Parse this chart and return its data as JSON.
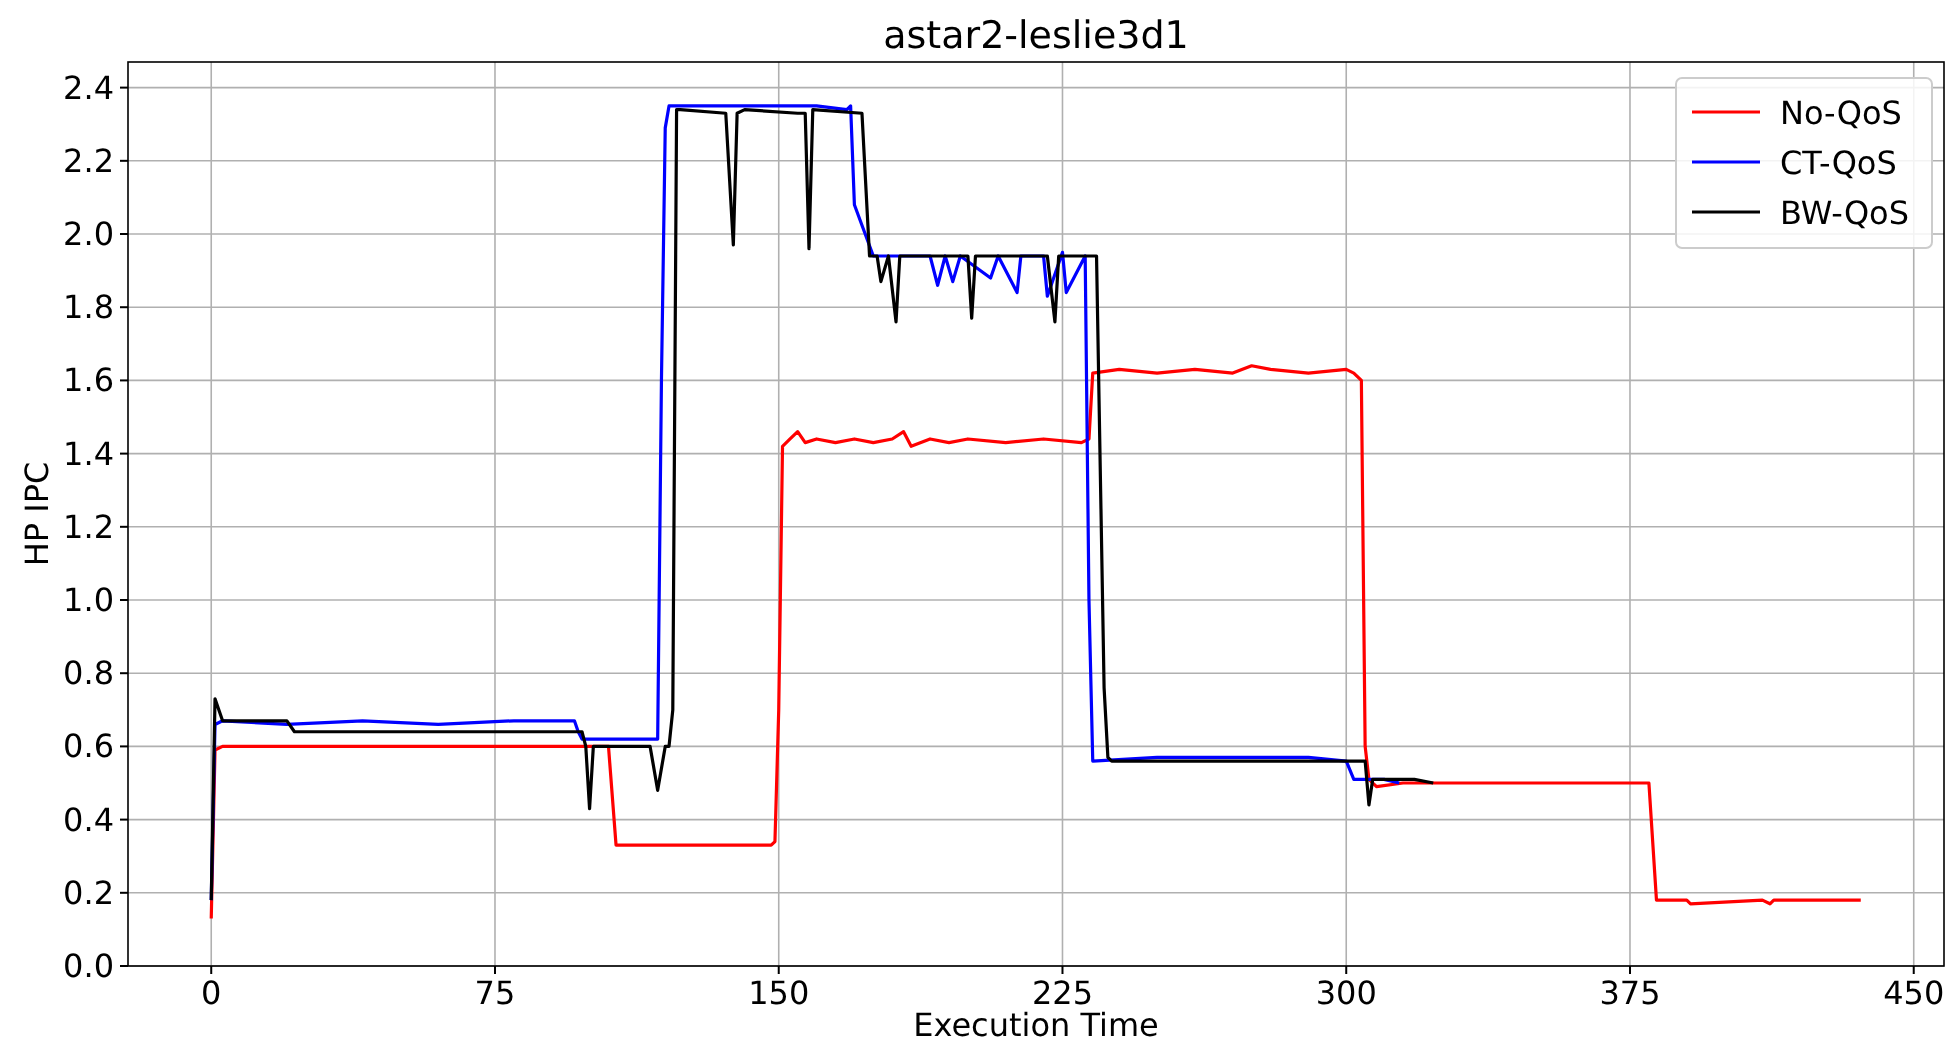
{
  "chart_data": {
    "type": "line",
    "title": "astar2-leslie3d1",
    "xlabel": "Execution Time",
    "ylabel": "HP IPC",
    "xlim": [
      -22,
      458
    ],
    "ylim": [
      0,
      2.47
    ],
    "xticks": [
      0,
      75,
      150,
      225,
      300,
      375,
      450
    ],
    "yticks": [
      {
        "value": 0,
        "label": "0.0"
      },
      0.2,
      0.4,
      0.6,
      0.8,
      {
        "value": 1,
        "label": "1.0"
      },
      1.2,
      1.4,
      1.6,
      1.8,
      {
        "value": 2,
        "label": "2.0"
      },
      2.2,
      2.4
    ],
    "grid": true,
    "legend": "top right",
    "marker": "none",
    "line_style": "solid",
    "series": [
      {
        "name": "No-QoS",
        "color": "#ff0000",
        "x": [
          0,
          1,
          3,
          50,
          104,
          105,
          107,
          148,
          149,
          150,
          151,
          153,
          155,
          157,
          160,
          165,
          170,
          175,
          180,
          183,
          185,
          190,
          195,
          200,
          210,
          220,
          230,
          232,
          233,
          240,
          250,
          260,
          270,
          275,
          280,
          290,
          300,
          302,
          304,
          305,
          306,
          308,
          315,
          330,
          345,
          360,
          375,
          380,
          382,
          390,
          391,
          410,
          412,
          413,
          436
        ],
        "values": [
          0.13,
          0.59,
          0.6,
          0.6,
          0.6,
          0.6,
          0.33,
          0.33,
          0.34,
          0.7,
          1.42,
          1.44,
          1.46,
          1.43,
          1.44,
          1.43,
          1.44,
          1.43,
          1.44,
          1.46,
          1.42,
          1.44,
          1.43,
          1.44,
          1.43,
          1.44,
          1.43,
          1.44,
          1.62,
          1.63,
          1.62,
          1.63,
          1.62,
          1.64,
          1.63,
          1.62,
          1.63,
          1.62,
          1.6,
          0.6,
          0.51,
          0.49,
          0.5,
          0.5,
          0.5,
          0.5,
          0.5,
          0.5,
          0.18,
          0.18,
          0.17,
          0.18,
          0.17,
          0.18,
          0.18
        ]
      },
      {
        "name": "CT-QoS",
        "color": "#0000ff",
        "x": [
          0,
          1,
          3,
          20,
          40,
          60,
          80,
          96,
          97,
          98,
          118,
          119,
          120,
          121,
          122,
          150,
          160,
          168,
          169,
          170,
          175,
          190,
          192,
          194,
          196,
          198,
          206,
          208,
          213,
          214,
          220,
          221,
          225,
          226,
          231,
          232,
          233,
          250,
          270,
          290,
          300,
          302,
          310,
          314
        ],
        "values": [
          0.18,
          0.66,
          0.67,
          0.66,
          0.67,
          0.66,
          0.67,
          0.67,
          0.64,
          0.62,
          0.62,
          1.6,
          2.29,
          2.35,
          2.35,
          2.35,
          2.35,
          2.34,
          2.35,
          2.08,
          1.94,
          1.94,
          1.86,
          1.94,
          1.87,
          1.94,
          1.88,
          1.94,
          1.84,
          1.94,
          1.94,
          1.83,
          1.95,
          1.84,
          1.94,
          1.0,
          0.56,
          0.57,
          0.57,
          0.57,
          0.56,
          0.51,
          0.51,
          0.5
        ]
      },
      {
        "name": "BW-QoS",
        "color": "#000000",
        "x": [
          0,
          1,
          3,
          20,
          22,
          50,
          98,
          99,
          100,
          101,
          116,
          118,
          120,
          121,
          122,
          123,
          124,
          136,
          138,
          139,
          141,
          155,
          157,
          158,
          159,
          172,
          174,
          176,
          177,
          179,
          181,
          182,
          190,
          200,
          201,
          202,
          210,
          221,
          223,
          224,
          234,
          236,
          237,
          238,
          250,
          270,
          290,
          300,
          305,
          306,
          307,
          318,
          323
        ],
        "values": [
          0.18,
          0.73,
          0.67,
          0.67,
          0.64,
          0.64,
          0.64,
          0.6,
          0.43,
          0.6,
          0.6,
          0.48,
          0.6,
          0.6,
          0.7,
          2.34,
          2.34,
          2.33,
          1.97,
          2.33,
          2.34,
          2.33,
          2.33,
          1.96,
          2.34,
          2.33,
          1.94,
          1.94,
          1.87,
          1.94,
          1.76,
          1.94,
          1.94,
          1.94,
          1.77,
          1.94,
          1.94,
          1.94,
          1.76,
          1.94,
          1.94,
          0.76,
          0.57,
          0.56,
          0.56,
          0.56,
          0.56,
          0.56,
          0.56,
          0.44,
          0.51,
          0.51,
          0.5
        ]
      }
    ]
  }
}
